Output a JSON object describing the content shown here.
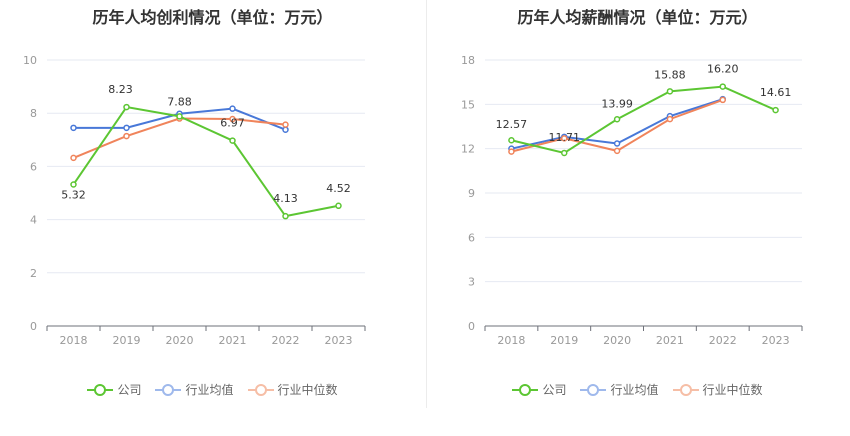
{
  "charts": [
    {
      "title": "历年人均创利情况（单位：万元）",
      "legend": [
        "公司",
        "行业均值",
        "行业中位数"
      ]
    },
    {
      "title": "历年人均薪酬情况（单位：万元）",
      "legend": [
        "公司",
        "行业均值",
        "行业中位数"
      ]
    }
  ],
  "colors": {
    "company": "#5cc633",
    "industry_avg": "#4878d8",
    "industry_median": "#f0845b"
  },
  "chart_data": [
    {
      "type": "line",
      "title": "历年人均创利情况（单位：万元）",
      "categories": [
        "2018",
        "2019",
        "2020",
        "2021",
        "2022",
        "2023"
      ],
      "ylim": [
        0,
        10
      ],
      "yticks": [
        0,
        2,
        4,
        6,
        8,
        10
      ],
      "series": [
        {
          "name": "公司",
          "values": [
            5.32,
            8.23,
            7.88,
            6.97,
            4.13,
            4.52
          ],
          "labels": [
            "5.32",
            "8.23",
            "7.88",
            "6.97",
            "4.13",
            "4.52"
          ]
        },
        {
          "name": "行业均值",
          "values": [
            7.45,
            7.45,
            7.98,
            8.17,
            7.38,
            null
          ]
        },
        {
          "name": "行业中位数",
          "values": [
            6.32,
            7.14,
            7.8,
            7.78,
            7.57,
            null
          ]
        }
      ],
      "grid": true,
      "legend_position": "bottom"
    },
    {
      "type": "line",
      "title": "历年人均薪酬情况（单位：万元）",
      "categories": [
        "2018",
        "2019",
        "2020",
        "2021",
        "2022",
        "2023"
      ],
      "ylim": [
        0,
        18
      ],
      "yticks": [
        0,
        3,
        6,
        9,
        12,
        15,
        18
      ],
      "series": [
        {
          "name": "公司",
          "values": [
            12.57,
            11.71,
            13.99,
            15.88,
            16.2,
            14.61
          ],
          "labels": [
            "12.57",
            "11.71",
            "13.99",
            "15.88",
            "16.20",
            "14.61"
          ]
        },
        {
          "name": "行业均值",
          "values": [
            12.0,
            12.8,
            12.35,
            14.2,
            15.35,
            null
          ]
        },
        {
          "name": "行业中位数",
          "values": [
            11.8,
            12.7,
            11.85,
            14.0,
            15.3,
            null
          ]
        }
      ],
      "grid": true,
      "legend_position": "bottom"
    }
  ]
}
